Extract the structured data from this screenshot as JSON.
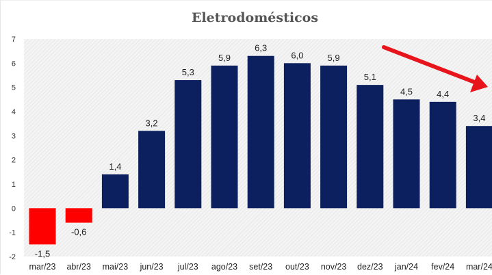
{
  "chart_data": {
    "type": "bar",
    "title": "Eletrodomésticos",
    "xlabel": "",
    "ylabel": "",
    "categories": [
      "mar/23",
      "abr/23",
      "mai/23",
      "jun/23",
      "jul/23",
      "ago/23",
      "set/23",
      "out/23",
      "nov/23",
      "dez/23",
      "jan/24",
      "fev/24",
      "mar/24"
    ],
    "values": [
      -1.5,
      -0.6,
      1.4,
      3.2,
      5.3,
      5.9,
      6.3,
      6.0,
      5.9,
      5.1,
      4.5,
      4.4,
      3.4
    ],
    "value_labels": [
      "-1,5",
      "-0,6",
      "1,4",
      "3,2",
      "5,3",
      "5,9",
      "6,3",
      "6,0",
      "5,9",
      "5,1",
      "4,5",
      "4,4",
      "3,4"
    ],
    "ylim": [
      -2,
      7
    ],
    "yticks": [
      "-2",
      "-1",
      "0",
      "1",
      "2",
      "3",
      "4",
      "5",
      "6",
      "7"
    ],
    "grid": "hatched plot area",
    "legend": "none",
    "colors": {
      "positive": "#0c1f5e",
      "negative": "#ff0000",
      "annotation_arrow": "#e8141b",
      "plot_background": "#f2f2f2"
    },
    "annotations": [
      {
        "type": "arrow",
        "direction": "down-right",
        "description": "decline from peak"
      }
    ]
  }
}
